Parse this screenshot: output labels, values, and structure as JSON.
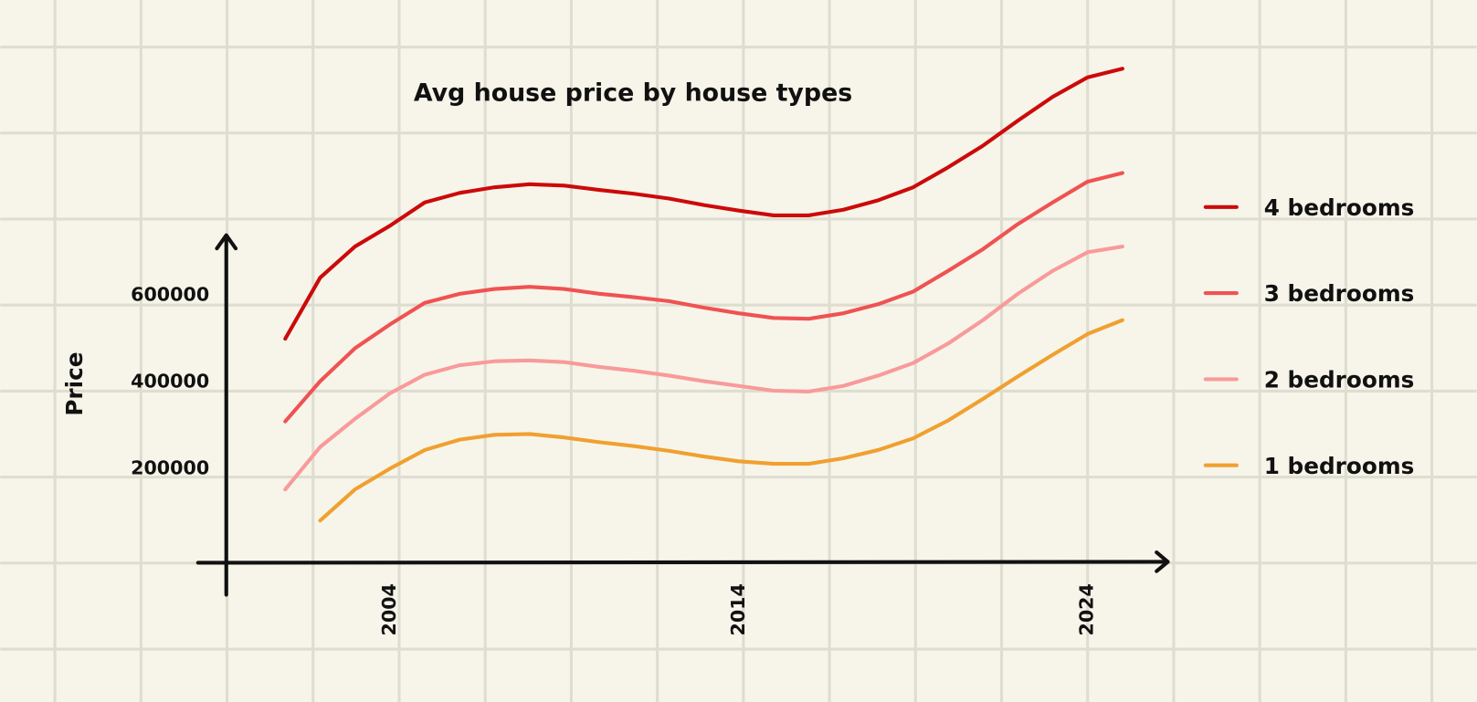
{
  "chart_data": {
    "type": "line",
    "title": "Avg house price by house types",
    "y_label": "Price",
    "x": [
      2001,
      2002,
      2003,
      2004,
      2005,
      2006,
      2007,
      2008,
      2009,
      2010,
      2011,
      2012,
      2013,
      2014,
      2015,
      2016,
      2017,
      2018,
      2019,
      2020,
      2021,
      2022,
      2023,
      2024,
      2025
    ],
    "xlim": [
      1998.5,
      2026.3
    ],
    "xticks": [
      2004,
      2014,
      2024
    ],
    "ylim": [
      0,
      1200000
    ],
    "yticks": [
      200000,
      400000,
      600000
    ],
    "legend": "right",
    "series": [
      {
        "name": "4 bedrooms",
        "color": "#cc0a0a",
        "values": [
          500000,
          641000,
          713000,
          761000,
          815000,
          837000,
          850000,
          857000,
          854000,
          844000,
          835000,
          824000,
          809000,
          796000,
          785000,
          785000,
          798000,
          820000,
          850000,
          896000,
          946000,
          1004000,
          1059000,
          1104000,
          1124000
        ]
      },
      {
        "name": "3 bedrooms",
        "color": "#f05252",
        "values": [
          309000,
          402000,
          478000,
          533000,
          583000,
          604000,
          615000,
          620000,
          615000,
          604000,
          596000,
          587000,
          572000,
          559000,
          548000,
          546000,
          559000,
          580000,
          609000,
          657000,
          707000,
          765000,
          815000,
          863000,
          883000
        ]
      },
      {
        "name": "2 bedrooms",
        "color": "#f99a9a",
        "values": [
          152000,
          250000,
          315000,
          374000,
          417000,
          439000,
          448000,
          450000,
          446000,
          435000,
          426000,
          415000,
          402000,
          391000,
          380000,
          378000,
          391000,
          415000,
          444000,
          489000,
          543000,
          604000,
          657000,
          700000,
          713000
        ]
      },
      {
        "name": "1 bedrooms",
        "color": "#f0a030",
        "values": [
          null,
          80000,
          152000,
          200000,
          243000,
          267000,
          278000,
          280000,
          272000,
          261000,
          252000,
          241000,
          228000,
          217000,
          211000,
          211000,
          224000,
          243000,
          270000,
          311000,
          361000,
          413000,
          463000,
          511000,
          543000
        ]
      }
    ]
  }
}
